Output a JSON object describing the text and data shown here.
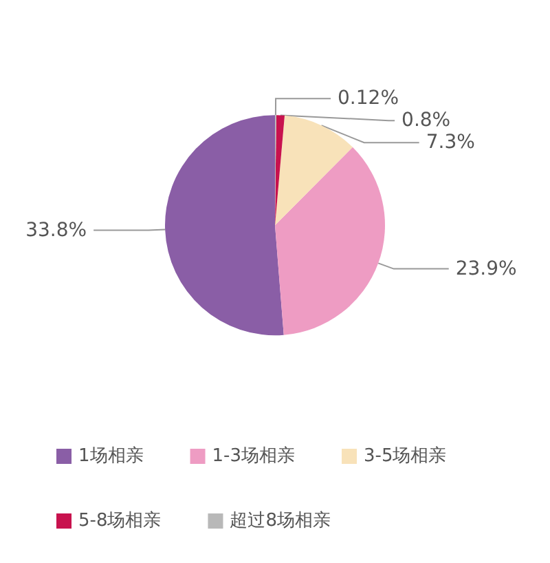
{
  "chart_data": {
    "type": "pie",
    "categories": [
      "1场相亲",
      "1-3场相亲",
      "3-5场相亲",
      "5-8场相亲",
      "超过8场相亲"
    ],
    "values": [
      33.8,
      23.9,
      7.3,
      0.8,
      0.12
    ],
    "colors": [
      "#8a5ea6",
      "#ee9cc3",
      "#f8e2b9",
      "#c8124e",
      "#b8b8b8"
    ],
    "value_labels": [
      "33.8%",
      "23.9%",
      "7.3%",
      "0.8%",
      "0.12%"
    ],
    "legend": "bottom left"
  }
}
